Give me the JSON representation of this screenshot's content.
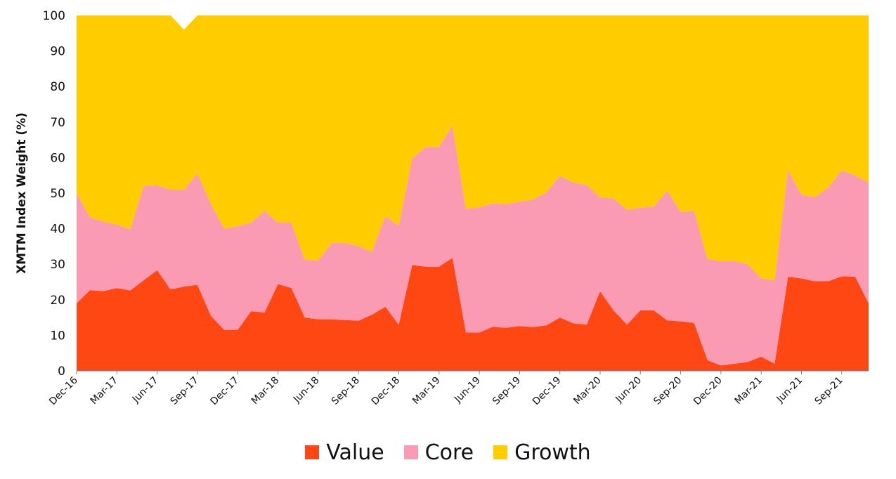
{
  "chart_data": {
    "type": "area",
    "stacked": true,
    "title": "",
    "xlabel": "",
    "ylabel": "XMTM Index Weight (%)",
    "ylim": [
      0,
      100
    ],
    "yticks": [
      0,
      10,
      20,
      30,
      40,
      50,
      60,
      70,
      80,
      90,
      100
    ],
    "grid": false,
    "legend_position": "bottom",
    "x": [
      "Dec-16",
      "Jan-17",
      "Feb-17",
      "Mar-17",
      "Apr-17",
      "May-17",
      "Jun-17",
      "Jul-17",
      "Aug-17",
      "Sep-17",
      "Oct-17",
      "Nov-17",
      "Dec-17",
      "Jan-18",
      "Feb-18",
      "Mar-18",
      "Apr-18",
      "May-18",
      "Jun-18",
      "Jul-18",
      "Aug-18",
      "Sep-18",
      "Oct-18",
      "Nov-18",
      "Dec-18",
      "Jan-19",
      "Feb-19",
      "Mar-19",
      "Apr-19",
      "May-19",
      "Jun-19",
      "Jul-19",
      "Aug-19",
      "Sep-19",
      "Oct-19",
      "Nov-19",
      "Dec-19",
      "Jan-20",
      "Feb-20",
      "Mar-20",
      "Apr-20",
      "May-20",
      "Jun-20",
      "Jul-20",
      "Aug-20",
      "Sep-20",
      "Oct-20",
      "Nov-20",
      "Dec-20",
      "Jan-21",
      "Feb-21",
      "Mar-21",
      "Apr-21",
      "May-21",
      "Jun-21",
      "Jul-21",
      "Aug-21",
      "Sep-21",
      "Oct-21",
      "Nov-21"
    ],
    "x_tick_labels": [
      "Dec-16",
      "Mar-17",
      "Jun-17",
      "Sep-17",
      "Dec-17",
      "Mar-18",
      "Jun-18",
      "Sep-18",
      "Dec-18",
      "Mar-19",
      "Jun-19",
      "Sep-19",
      "Dec-19",
      "Mar-20",
      "Jun-20",
      "Sep-20",
      "Dec-20",
      "Mar-21",
      "Jun-21",
      "Sep-21"
    ],
    "series": [
      {
        "name": "Value",
        "color": "#ff4713",
        "values": [
          19.0,
          22.7,
          22.4,
          23.3,
          22.6,
          25.5,
          28.3,
          22.9,
          23.7,
          24.2,
          15.5,
          11.5,
          11.5,
          16.8,
          16.4,
          24.4,
          23.3,
          15.0,
          14.5,
          14.5,
          14.3,
          14.1,
          15.8,
          18.0,
          13.0,
          29.8,
          29.3,
          29.3,
          31.8,
          10.8,
          10.8,
          12.4,
          12.1,
          12.6,
          12.3,
          12.8,
          15.0,
          13.4,
          13.0,
          22.4,
          17.0,
          13.0,
          17.0,
          17.0,
          14.2,
          13.9,
          13.5,
          3.0,
          1.5,
          2.0,
          2.5,
          4.0,
          2.0,
          26.5,
          26.0,
          25.2,
          25.2,
          26.6,
          26.5,
          19.0
        ]
      },
      {
        "name": "Core",
        "color": "#fa9bb3",
        "values": [
          31.0,
          20.5,
          19.6,
          17.8,
          17.2,
          26.5,
          23.9,
          28.1,
          27.2,
          31.3,
          31.5,
          28.5,
          29.2,
          24.9,
          28.6,
          17.3,
          18.4,
          16.3,
          16.5,
          21.5,
          21.7,
          21.0,
          17.7,
          25.5,
          27.8,
          29.9,
          33.7,
          33.7,
          37.2,
          34.7,
          35.2,
          34.7,
          34.8,
          35.0,
          35.9,
          37.4,
          39.9,
          39.6,
          39.3,
          26.4,
          31.5,
          32.3,
          28.9,
          29.2,
          36.5,
          30.8,
          31.5,
          28.5,
          29.3,
          28.9,
          27.5,
          22.0,
          23.5,
          30.0,
          23.5,
          23.7,
          26.3,
          29.8,
          28.5,
          34.0
        ]
      },
      {
        "name": "Growth",
        "color": "#ffcc00",
        "values": [
          50.0,
          56.8,
          58.0,
          58.9,
          60.2,
          48.0,
          47.8,
          49.0,
          45.1,
          44.5,
          53.0,
          60.0,
          59.3,
          58.3,
          55.0,
          58.3,
          58.3,
          68.7,
          69.0,
          64.0,
          64.0,
          64.9,
          66.5,
          56.5,
          59.2,
          40.3,
          37.0,
          37.0,
          31.0,
          54.5,
          54.0,
          52.9,
          53.1,
          52.4,
          51.8,
          49.8,
          45.1,
          47.0,
          47.7,
          51.2,
          51.5,
          54.7,
          54.1,
          53.8,
          49.3,
          55.3,
          55.0,
          68.5,
          69.2,
          69.1,
          70.0,
          74.0,
          74.5,
          43.5,
          50.5,
          51.1,
          48.5,
          43.6,
          45.0,
          47.0
        ]
      }
    ]
  }
}
